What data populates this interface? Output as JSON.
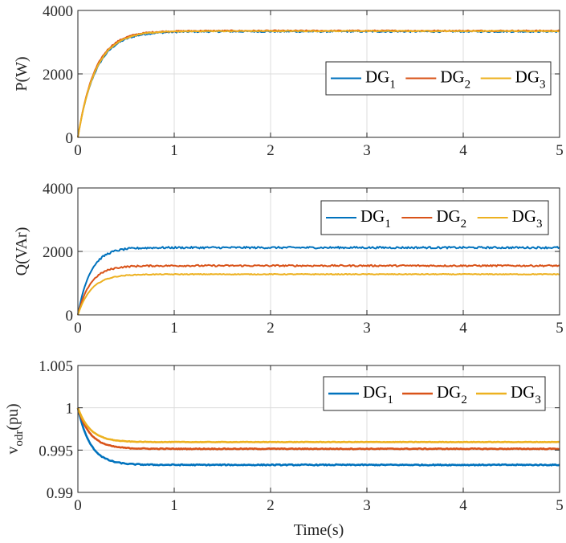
{
  "colors": {
    "DG1": "#0072BD",
    "DG2": "#D95319",
    "DG3": "#EDB120",
    "grid": "#dcdcdc",
    "axis": "#262626"
  },
  "chart_data": [
    {
      "type": "line",
      "ylabel": "P(W)",
      "xlabel": "",
      "xlim": [
        0,
        5
      ],
      "ylim": [
        0,
        4000
      ],
      "xticks": [
        "0",
        "1",
        "2",
        "3",
        "4",
        "5"
      ],
      "yticks": [
        "0",
        "2000",
        "4000"
      ],
      "grid": true,
      "legend_placement": "right",
      "series": [
        {
          "name": "DG",
          "sub": "1",
          "color": "#0072BD",
          "tau": 0.19,
          "y0": 0,
          "final": 3330,
          "noise": 25
        },
        {
          "name": "DG",
          "sub": "2",
          "color": "#D95319",
          "tau": 0.18,
          "y0": 0,
          "final": 3360,
          "noise": 18
        },
        {
          "name": "DG",
          "sub": "3",
          "color": "#EDB120",
          "tau": 0.185,
          "y0": 0,
          "final": 3350,
          "noise": 15
        }
      ]
    },
    {
      "type": "line",
      "ylabel": "Q(VAr)",
      "xlabel": "",
      "xlim": [
        0,
        5
      ],
      "ylim": [
        0,
        4000
      ],
      "xticks": [
        "0",
        "1",
        "2",
        "3",
        "4",
        "5"
      ],
      "yticks": [
        "0",
        "2000",
        "4000"
      ],
      "grid": true,
      "legend_placement": "top-right",
      "series": [
        {
          "name": "DG",
          "sub": "1",
          "color": "#0072BD",
          "tau": 0.13,
          "y0": 0,
          "final": 2120,
          "noise": 30
        },
        {
          "name": "DG",
          "sub": "2",
          "color": "#D95319",
          "tau": 0.13,
          "y0": 0,
          "final": 1550,
          "noise": 25
        },
        {
          "name": "DG",
          "sub": "3",
          "color": "#EDB120",
          "tau": 0.14,
          "y0": 0,
          "final": 1280,
          "noise": 12
        }
      ]
    },
    {
      "type": "line",
      "ylabel": "v",
      "ylabel_sub": "odr",
      "ylabel_suffix": "(pu)",
      "xlabel": "Time(s)",
      "xlim": [
        0,
        5
      ],
      "ylim": [
        0.99,
        1.005
      ],
      "xticks": [
        "0",
        "1",
        "2",
        "3",
        "4",
        "5"
      ],
      "yticks": [
        "0.99",
        "0.995",
        "1",
        "1.005"
      ],
      "grid": true,
      "legend_placement": "top-right",
      "series": [
        {
          "name": "DG",
          "sub": "1",
          "color": "#0072BD",
          "tau": 0.13,
          "y0": 1.0,
          "final": 0.99325,
          "noise": 6e-05
        },
        {
          "name": "DG",
          "sub": "2",
          "color": "#D95319",
          "tau": 0.13,
          "y0": 1.0,
          "final": 0.99515,
          "noise": 5e-05
        },
        {
          "name": "DG",
          "sub": "3",
          "color": "#EDB120",
          "tau": 0.13,
          "y0": 1.0,
          "final": 0.99595,
          "noise": 3e-05
        }
      ]
    }
  ]
}
